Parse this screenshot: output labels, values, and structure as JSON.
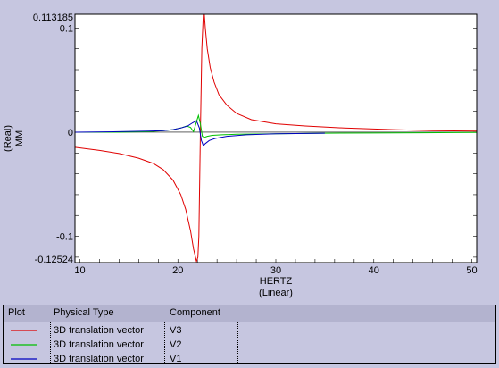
{
  "chart_data": {
    "type": "line",
    "xlabel": "HERTZ",
    "xscale_label": "(Linear)",
    "ylabel_part": "(Real)",
    "ylabel_unit": "MM",
    "xlim": [
      9.5,
      50.5
    ],
    "ylim": [
      -0.12524,
      0.113185
    ],
    "ymax_label": "0.113185",
    "ymin_label": "-0.12524",
    "x_ticks": [
      10,
      20,
      30,
      40,
      50
    ],
    "y_ticks": [
      {
        "value": 0.1,
        "label": "0.1"
      },
      {
        "value": 0,
        "label": "0"
      },
      {
        "value": -0.1,
        "label": "-0.1"
      }
    ],
    "grid": false,
    "series": [
      {
        "name": "V3",
        "color": "#e00000",
        "x": [
          9.5,
          12,
          14,
          16,
          17.5,
          18.5,
          19.5,
          20.3,
          20.8,
          21.3,
          21.6,
          21.9,
          22.05,
          22.15,
          22.3,
          22.45,
          22.6,
          22.7,
          22.8,
          23.0,
          23.3,
          23.7,
          24.2,
          25,
          26,
          27.5,
          30,
          33,
          37,
          42,
          46,
          50.5
        ],
        "y": [
          -0.0145,
          -0.0175,
          -0.0205,
          -0.025,
          -0.03,
          -0.036,
          -0.046,
          -0.06,
          -0.074,
          -0.095,
          -0.112,
          -0.124,
          -0.12,
          -0.1,
          0.0,
          0.08,
          0.113185,
          0.113185,
          0.1,
          0.08,
          0.062,
          0.048,
          0.036,
          0.026,
          0.018,
          0.012,
          0.008,
          0.006,
          0.004,
          0.0025,
          0.0015,
          0.001
        ]
      },
      {
        "name": "V2",
        "color": "#00c000",
        "x": [
          9.5,
          14,
          17,
          18.5,
          19.5,
          20.3,
          20.9,
          21.3,
          21.6,
          21.9,
          22.1,
          22.3,
          22.5,
          22.7,
          23.0,
          23.5,
          24.5,
          26,
          30,
          35,
          40,
          45,
          50.5
        ],
        "y": [
          0.0,
          0.0,
          0.0005,
          0.0015,
          0.0025,
          0.004,
          0.006,
          0.0045,
          0.0005,
          0.01,
          0.016,
          0.008,
          -0.004,
          -0.005,
          -0.004,
          -0.003,
          -0.0025,
          -0.002,
          -0.0015,
          -0.001,
          -0.0008,
          -0.0005,
          -0.0003
        ]
      },
      {
        "name": "V1",
        "color": "#0000c0",
        "x": [
          9.5,
          14,
          17,
          18.5,
          19.5,
          20.3,
          21.0,
          21.5,
          21.9,
          22.2,
          22.4,
          22.6,
          22.8,
          23.2,
          23.8,
          25,
          27,
          30,
          35
        ],
        "y": [
          0.0,
          0.0005,
          0.001,
          0.0015,
          0.0025,
          0.004,
          0.006,
          0.009,
          0.011,
          0.004,
          -0.008,
          -0.013,
          -0.011,
          -0.008,
          -0.006,
          -0.004,
          -0.0025,
          -0.0015,
          -0.001
        ]
      }
    ]
  },
  "legend": {
    "headers": [
      "Plot",
      "Physical Type",
      "Component"
    ],
    "rows": [
      {
        "color": "#e00000",
        "physical_type": "3D translation vector",
        "component": "V3"
      },
      {
        "color": "#00c000",
        "physical_type": "3D translation vector",
        "component": "V2"
      },
      {
        "color": "#0000c0",
        "physical_type": "3D translation vector",
        "component": "V1"
      }
    ]
  }
}
